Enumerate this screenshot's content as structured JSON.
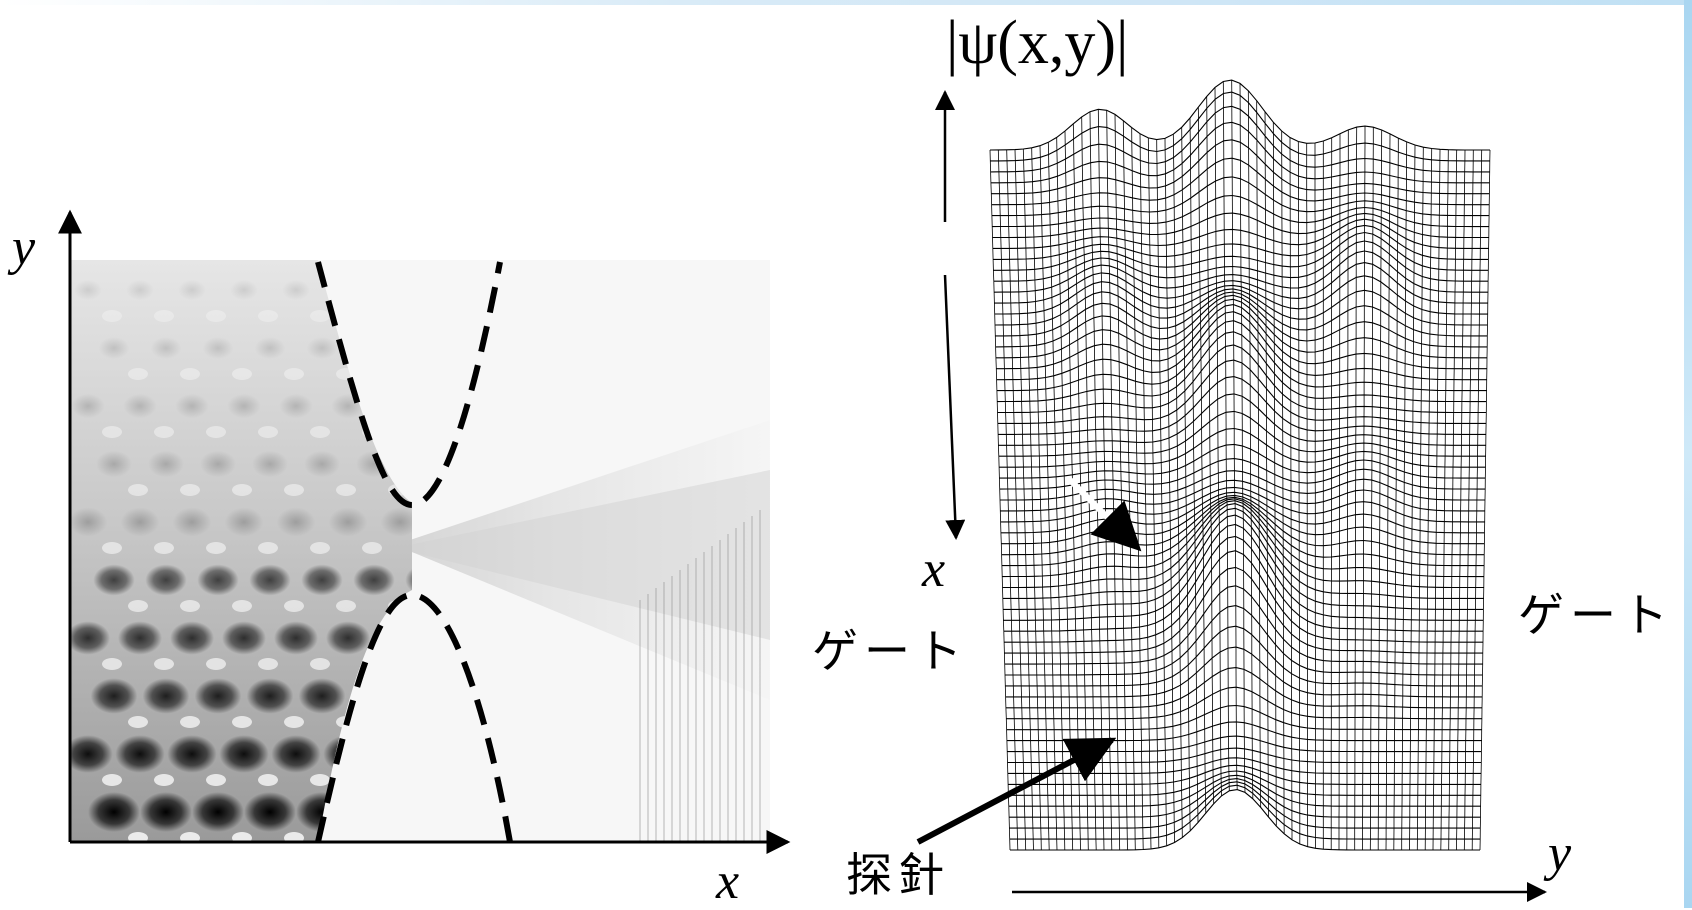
{
  "left_panel": {
    "x_axis_label": "x",
    "y_axis_label": "y"
  },
  "right_panel": {
    "z_axis_label": "|ψ(x,y)|",
    "x_axis_label": "x",
    "y_axis_label": "y",
    "gate_label_left": "ゲート",
    "gate_label_right": "ゲート",
    "probe_label": "探針"
  },
  "colors": {
    "line": "#000000",
    "background": "#ffffff",
    "accent_band": "#cfe6f6"
  }
}
